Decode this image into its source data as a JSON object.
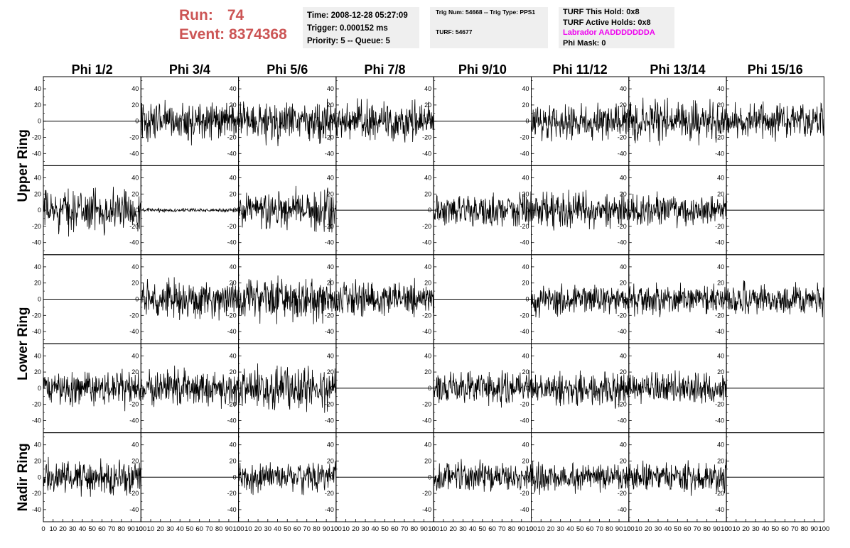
{
  "header": {
    "run_label": "Run:",
    "run_value": "74",
    "event_label": "Event:",
    "event_value": "8374368"
  },
  "time_box": {
    "time": "Time: 2008-12-28 05:27:09",
    "trigger": "Trigger: 0.000152 ms",
    "priority": "Priority: 5 -- Queue: 5"
  },
  "trig_box": {
    "trig_line": "Trig Num: 54668 -- Trig Type: PPS1",
    "turf_line": "TURF: 54677"
  },
  "turf_box": {
    "hold": "TURF This Hold: 0x8",
    "active_holds": "TURF Active Holds: 0x8",
    "labrador": "Labrador AADDDDDDDA",
    "phi_mask": "Phi Mask: 0"
  },
  "chart_data": {
    "type": "line",
    "columns": [
      "Phi 1/2",
      "Phi 3/4",
      "Phi 5/6",
      "Phi 7/8",
      "Phi 9/10",
      "Phi 11/12",
      "Phi 13/14",
      "Phi 15/16"
    ],
    "ring_labels": [
      "Upper Ring",
      "Lower Ring",
      "Nadir Ring"
    ],
    "rows": 5,
    "xlim": [
      0,
      100
    ],
    "ylim": [
      -55,
      55
    ],
    "y_ticks": [
      -40,
      -20,
      0,
      20,
      40
    ],
    "x_tick_labels": [
      "0",
      "10",
      "20",
      "30",
      "40",
      "50",
      "60",
      "70",
      "80",
      "90",
      "100"
    ],
    "grid": false,
    "line_color": "#000000",
    "panel_amplitude": [
      [
        0,
        20,
        22,
        22,
        0,
        18,
        22,
        18
      ],
      [
        22,
        2,
        22,
        0,
        18,
        18,
        16,
        0
      ],
      [
        0,
        20,
        22,
        18,
        0,
        16,
        16,
        16
      ],
      [
        18,
        20,
        22,
        0,
        18,
        18,
        16,
        0
      ],
      [
        18,
        0,
        16,
        0,
        16,
        16,
        16,
        0
      ]
    ]
  }
}
